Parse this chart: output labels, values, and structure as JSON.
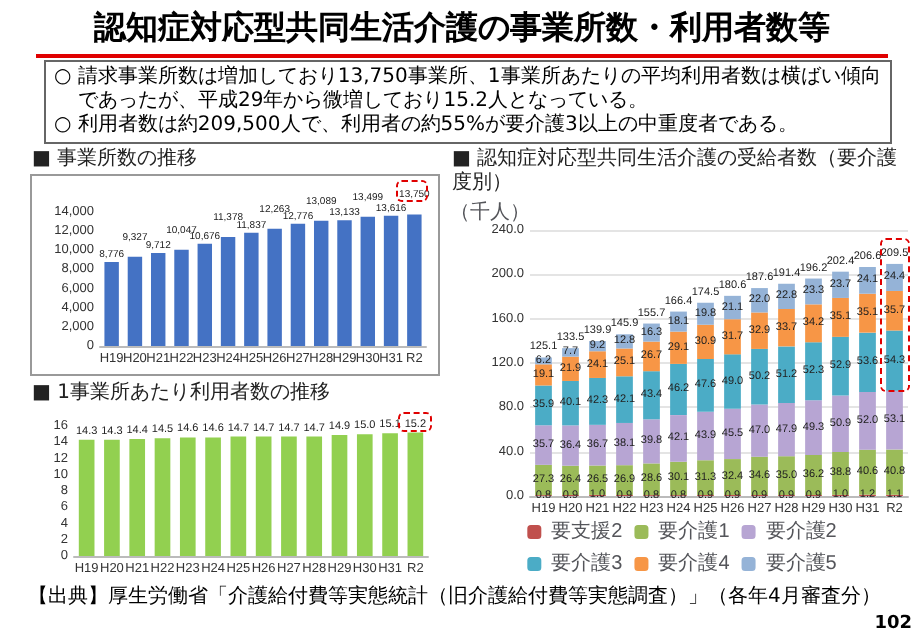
{
  "chart_data": [
    {
      "type": "other",
      "title": "認知症対応型共同生活介護の事業所数・利用者数等",
      "annotations": [
        "○ 請求事業所数は増加しており13,750事業所、1事業所あたりの平均利用者数は横ばい傾向であったが、平成29年から微増しており15.2人となっている。",
        "○ 利用者数は約209,500人で、利用者の約55%が要介護3以上の中重度者である。",
        "【出典】厚生労働省「介護給付費等実態統計（旧介護給付費等実態調査）」（各年4月審査分）",
        "102"
      ]
    },
    {
      "type": "bar",
      "title": "■ 事業所数の推移",
      "categories": [
        "H19",
        "H20",
        "H21",
        "H22",
        "H23",
        "H24",
        "H25",
        "H26",
        "H27",
        "H28",
        "H29",
        "H30",
        "H31",
        "R2"
      ],
      "values": [
        8776,
        9327,
        9712,
        10047,
        10676,
        11378,
        11837,
        12263,
        12776,
        13089,
        13133,
        13499,
        13616,
        13750
      ],
      "value_labels": [
        "8,776",
        "9,327",
        "9,712",
        "10,047",
        "10,676",
        "11,378",
        "11,837",
        "12,263",
        "12,776",
        "13,089",
        "13,133",
        "13,499",
        "13,616",
        "13,750"
      ],
      "color": "#4472c4",
      "ylim": [
        0,
        14000
      ],
      "yticks": [
        0,
        {
          "value": 2000,
          "label": "2,000"
        },
        {
          "value": 4000,
          "label": "4,000"
        },
        {
          "value": 6000,
          "label": "6,000"
        },
        {
          "value": 8000,
          "label": "8,000"
        },
        {
          "value": 10000,
          "label": "10,000"
        },
        {
          "value": 12000,
          "label": "12,000"
        },
        {
          "value": 14000,
          "label": "14,000"
        }
      ],
      "grid": false,
      "legend": false
    },
    {
      "type": "bar",
      "title": "■ 1事業所あたり利用者数の推移",
      "categories": [
        "H19",
        "H20",
        "H21",
        "H22",
        "H23",
        "H24",
        "H25",
        "H26",
        "H27",
        "H28",
        "H29",
        "H30",
        "H31",
        "R2"
      ],
      "values": [
        14.3,
        14.3,
        14.4,
        14.5,
        14.6,
        14.6,
        14.7,
        14.7,
        14.7,
        14.7,
        14.9,
        15.0,
        15.1,
        15.2
      ],
      "value_labels": [
        "14.3",
        "14.3",
        "14.4",
        "14.5",
        "14.6",
        "14.6",
        "14.7",
        "14.7",
        "14.7",
        "14.7",
        "14.9",
        "15.0",
        "15.1",
        "15.2"
      ],
      "color": "#92d050",
      "ylim": [
        0,
        16
      ],
      "yticks": [
        0,
        2,
        4,
        6,
        8,
        10,
        12,
        14,
        16
      ],
      "grid": false,
      "legend": false
    },
    {
      "type": "bar",
      "title": "■ 認知症対応型共同生活介護の受給者数（要介護度別）",
      "ylabel": "（千人）",
      "categories": [
        "H19",
        "H20",
        "H21",
        "H22",
        "H23",
        "H24",
        "H25",
        "H26",
        "H27",
        "H28",
        "H29",
        "H30",
        "H31",
        "R2"
      ],
      "stacked": true,
      "series": [
        {
          "name": "要支援2",
          "color": "#c0504d",
          "values": [
            0.8,
            0.9,
            1.0,
            0.9,
            0.8,
            0.8,
            0.9,
            0.9,
            0.9,
            0.9,
            0.9,
            1.0,
            1.2,
            1.1
          ],
          "value_labels": [
            "0.8",
            "0.9",
            "1.0",
            "0.9",
            "0.8",
            "0.8",
            "0.9",
            "0.9",
            "0.9",
            "0.9",
            "0.9",
            "1.0",
            "1.2",
            "1.1"
          ]
        },
        {
          "name": "要介護1",
          "color": "#9bbb59",
          "values": [
            27.3,
            26.4,
            26.5,
            26.9,
            28.6,
            30.1,
            31.3,
            32.4,
            34.6,
            35.0,
            36.2,
            38.8,
            40.6,
            40.8
          ],
          "value_labels": [
            "27.3",
            "26.4",
            "26.5",
            "26.9",
            "28.6",
            "30.1",
            "31.3",
            "32.4",
            "34.6",
            "35.0",
            "36.2",
            "38.8",
            "40.6",
            "40.8"
          ]
        },
        {
          "name": "要介護2",
          "color": "#b7a5d3",
          "values": [
            35.7,
            36.4,
            36.7,
            38.1,
            39.8,
            42.1,
            43.9,
            45.5,
            47.0,
            47.9,
            49.3,
            50.9,
            52.0,
            53.1
          ],
          "value_labels": [
            "35.7",
            "36.4",
            "36.7",
            "38.1",
            "39.8",
            "42.1",
            "43.9",
            "45.5",
            "47.0",
            "47.9",
            "49.3",
            "50.9",
            "52.0",
            "53.1"
          ]
        },
        {
          "name": "要介護3",
          "color": "#4bacc6",
          "values": [
            35.9,
            40.1,
            42.3,
            42.1,
            43.4,
            46.2,
            47.6,
            49.0,
            50.2,
            51.2,
            52.3,
            52.9,
            53.6,
            54.3
          ],
          "value_labels": [
            "35.9",
            "40.1",
            "42.3",
            "42.1",
            "43.4",
            "46.2",
            "47.6",
            "49.0",
            "50.2",
            "51.2",
            "52.3",
            "52.9",
            "53.6",
            "54.3"
          ]
        },
        {
          "name": "要介護4",
          "color": "#f79646",
          "values": [
            19.1,
            21.9,
            24.1,
            25.1,
            26.7,
            29.1,
            30.9,
            31.7,
            32.9,
            33.7,
            34.2,
            35.1,
            35.1,
            35.7
          ],
          "value_labels": [
            "19.1",
            "21.9",
            "24.1",
            "25.1",
            "26.7",
            "29.1",
            "30.9",
            "31.7",
            "32.9",
            "33.7",
            "34.2",
            "35.1",
            "35.1",
            "35.7"
          ]
        },
        {
          "name": "要介護5",
          "color": "#95b3d7",
          "values": [
            6.2,
            7.7,
            9.2,
            12.8,
            16.3,
            18.1,
            19.8,
            21.1,
            22.0,
            22.8,
            23.3,
            23.7,
            24.1,
            24.4
          ],
          "value_labels": [
            "6.2",
            "7.7",
            "9.2",
            "12.8",
            "16.3",
            "18.1",
            "19.8",
            "21.1",
            "22.0",
            "22.8",
            "23.3",
            "23.7",
            "24.1",
            "24.4"
          ]
        }
      ],
      "totals": [
        "125.1",
        "133.5",
        "139.9",
        "145.9",
        "155.7",
        "166.4",
        "174.5",
        "180.6",
        "187.6",
        "191.4",
        "196.2",
        "202.4",
        "206.6",
        "209.5"
      ],
      "ylim": [
        0,
        240
      ],
      "yticks": [
        {
          "value": 0,
          "label": "0.0"
        },
        {
          "value": 40,
          "label": "40.0"
        },
        {
          "value": 80,
          "label": "80.0"
        },
        {
          "value": 120,
          "label": "120.0"
        },
        {
          "value": 160,
          "label": "160.0"
        },
        {
          "value": 200,
          "label": "200.0"
        },
        {
          "value": 240,
          "label": "240.0"
        }
      ],
      "grid": "y",
      "legend": "bottom"
    }
  ]
}
